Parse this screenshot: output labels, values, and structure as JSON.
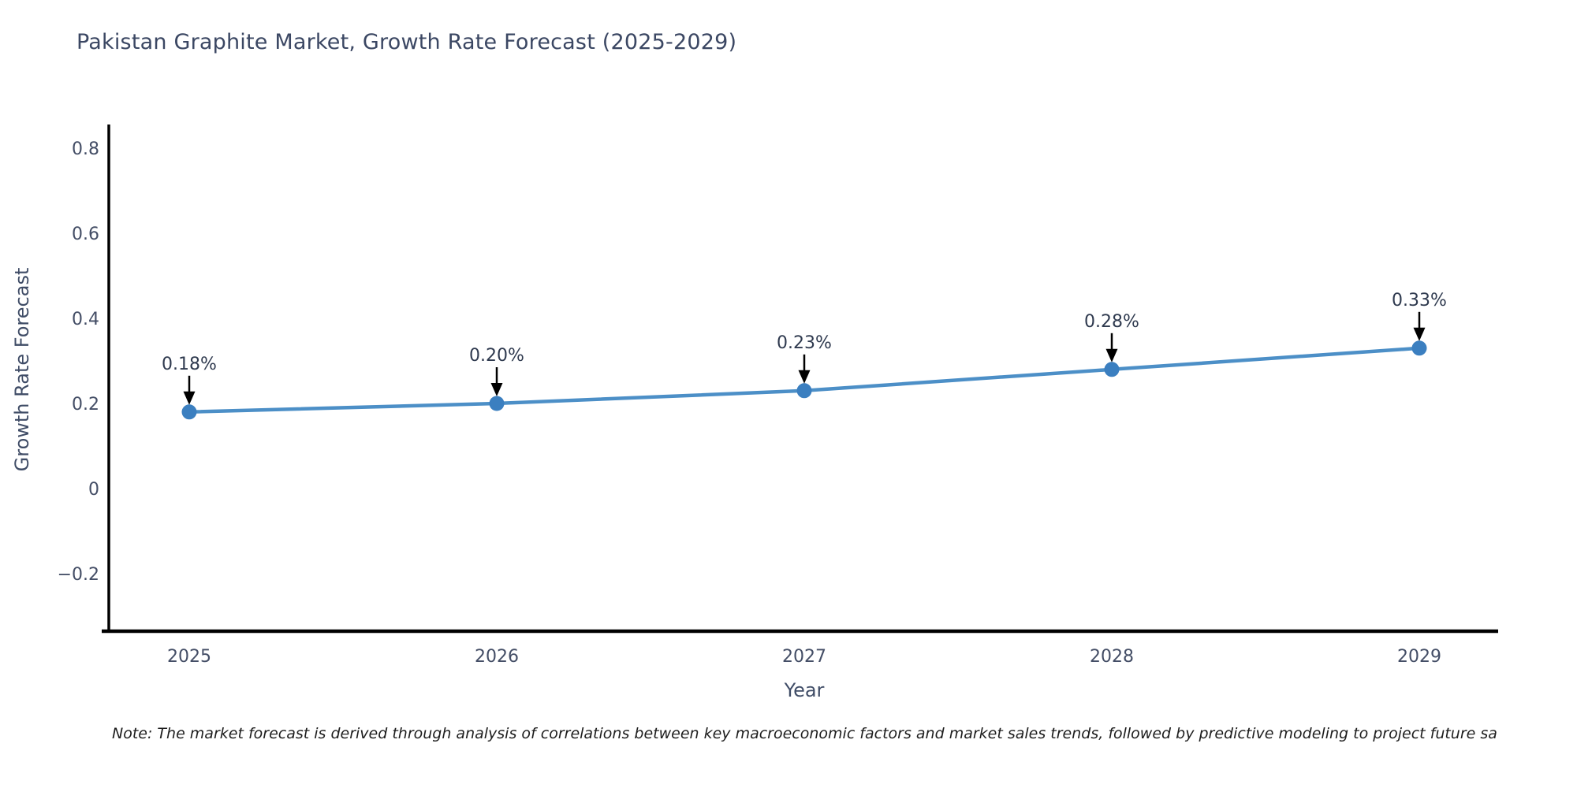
{
  "title": "Pakistan Graphite Market, Growth Rate Forecast (2025-2029)",
  "note": "Note: The market forecast is derived through analysis of correlations between key macroeconomic factors and market sales trends, followed by predictive modeling to project future sa",
  "chart_data": {
    "type": "line",
    "title": "Pakistan Graphite Market, Growth Rate Forecast (2025-2029)",
    "xlabel": "Year",
    "ylabel": "Growth Rate Forecast",
    "x": [
      2025,
      2026,
      2027,
      2028,
      2029
    ],
    "categories": [
      "2025",
      "2026",
      "2027",
      "2028",
      "2029"
    ],
    "values": [
      0.18,
      0.2,
      0.23,
      0.28,
      0.33
    ],
    "point_labels": [
      "0.18%",
      "0.20%",
      "0.23%",
      "0.28%",
      "0.33%"
    ],
    "yticks": [
      0.8,
      0.6,
      0.4,
      0.2,
      0,
      -0.2
    ],
    "ytick_labels": [
      "0.8",
      "0.6",
      "0.4",
      "0.2",
      "0",
      "−0.2"
    ],
    "ylim": [
      -0.34,
      0.86
    ],
    "grid": false,
    "legend": "none",
    "annotation_style": "value label with downward black arrow to marker",
    "colors": {
      "line": "#4c8fc7",
      "marker": "#3b7fc0",
      "axis": "#000000",
      "title_text": "#3b4763",
      "tick_text": "#444e66",
      "annotation_text": "#2f3a4f",
      "arrow": "#000000",
      "note_text": "#1d1d1d",
      "background": "#ffffff"
    }
  }
}
